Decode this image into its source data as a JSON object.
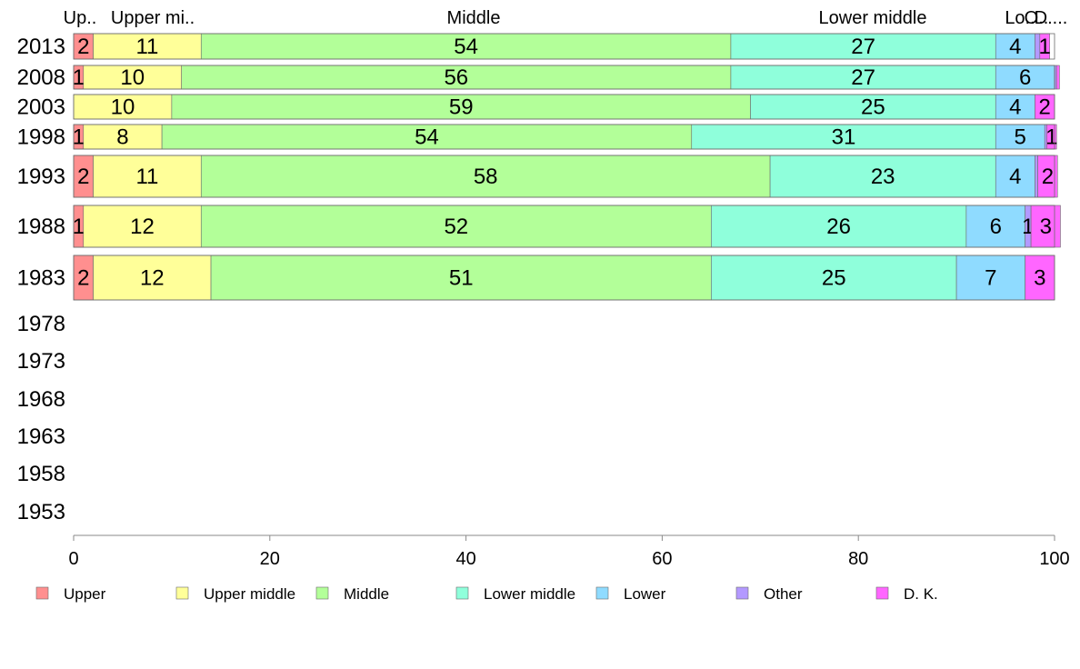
{
  "chart_data": {
    "type": "bar",
    "orientation": "horizontal",
    "stacked": true,
    "categories": [
      "2013",
      "2008",
      "2003",
      "1998",
      "1993",
      "1988",
      "1983",
      "1978",
      "1973",
      "1968",
      "1963",
      "1958",
      "1953"
    ],
    "series": [
      {
        "name": "Upper",
        "color": "#ff8f8f",
        "values": [
          2,
          1,
          0,
          1,
          2,
          1,
          2,
          null,
          null,
          null,
          null,
          null,
          null
        ]
      },
      {
        "name": "Upper middle",
        "color": "#ffff99",
        "values": [
          11,
          10,
          10,
          8,
          11,
          12,
          12,
          null,
          null,
          null,
          null,
          null,
          null
        ]
      },
      {
        "name": "Middle",
        "color": "#b3ff99",
        "values": [
          54,
          56,
          59,
          54,
          58,
          52,
          51,
          null,
          null,
          null,
          null,
          null,
          null
        ]
      },
      {
        "name": "Lower middle",
        "color": "#8fffdb",
        "values": [
          27,
          27,
          25,
          31,
          23,
          26,
          25,
          null,
          null,
          null,
          null,
          null,
          null
        ]
      },
      {
        "name": "Lower",
        "color": "#8fdbff",
        "values": [
          4,
          6,
          4,
          5,
          4,
          6,
          7,
          null,
          null,
          null,
          null,
          null,
          null
        ]
      },
      {
        "name": "Other",
        "color": "#b399ff",
        "values": [
          0.5,
          0.2,
          0,
          0.2,
          0.3,
          0.6,
          0,
          null,
          null,
          null,
          null,
          null,
          null
        ]
      },
      {
        "name": "D. K.",
        "color": "#ff66ff",
        "values": [
          1,
          0.3,
          2,
          1,
          2,
          3,
          3,
          null,
          null,
          null,
          null,
          null,
          null
        ]
      }
    ],
    "segment_labels": [
      [
        "2",
        "11",
        "54",
        "27",
        "4",
        "",
        "1"
      ],
      [
        "1",
        "10",
        "56",
        "27",
        "6",
        "",
        ""
      ],
      [
        "",
        "10",
        "59",
        "25",
        "4",
        "",
        "2"
      ],
      [
        "1",
        "8",
        "54",
        "31",
        "5",
        "",
        "1"
      ],
      [
        "2",
        "11",
        "58",
        "23",
        "4",
        "",
        "2"
      ],
      [
        "1",
        "12",
        "52",
        "26",
        "6",
        "1",
        "3"
      ],
      [
        "2",
        "12",
        "51",
        "25",
        "7",
        "",
        "3"
      ]
    ],
    "top_labels": [
      "Up..",
      "Upper mi..",
      "Middle",
      "Lower middle",
      "Lo..",
      "O..",
      "D...."
    ],
    "xlim": [
      0,
      100
    ],
    "xticks": [
      0,
      20,
      40,
      60,
      80,
      100
    ],
    "xlabel": "",
    "ylabel": "",
    "title": "",
    "legend_position": "bottom"
  }
}
